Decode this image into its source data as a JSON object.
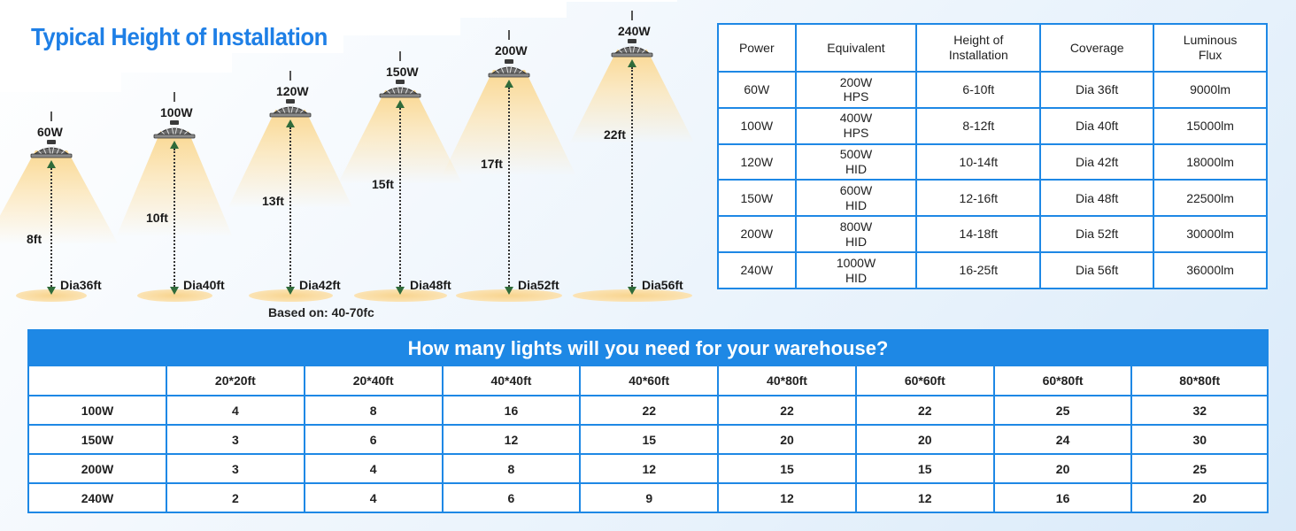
{
  "title": "Typical Height of Installation",
  "lamps": [
    {
      "watt": "60W",
      "height": "8ft",
      "dia": "Dia36ft"
    },
    {
      "watt": "100W",
      "height": "10ft",
      "dia": "Dia40ft"
    },
    {
      "watt": "120W",
      "height": "13ft",
      "dia": "Dia42ft"
    },
    {
      "watt": "150W",
      "height": "15ft",
      "dia": "Dia48ft"
    },
    {
      "watt": "200W",
      "height": "17ft",
      "dia": "Dia52ft"
    },
    {
      "watt": "240W",
      "height": "22ft",
      "dia": "Dia56ft"
    }
  ],
  "based_on": "Based on: 40-70fc",
  "spec_table": {
    "headers": [
      "Power",
      "Equivalent",
      "Height of\nInstallation",
      "Coverage",
      "Luminous\nFlux"
    ],
    "rows": [
      [
        "60W",
        "200W\nHPS",
        "6-10ft",
        "Dia 36ft",
        "9000lm"
      ],
      [
        "100W",
        "400W\nHPS",
        "8-12ft",
        "Dia 40ft",
        "15000lm"
      ],
      [
        "120W",
        "500W\nHID",
        "10-14ft",
        "Dia 42ft",
        "18000lm"
      ],
      [
        "150W",
        "600W\nHID",
        "12-16ft",
        "Dia 48ft",
        "22500lm"
      ],
      [
        "200W",
        "800W\nHID",
        "14-18ft",
        "Dia 52ft",
        "30000lm"
      ],
      [
        "240W",
        "1000W\nHID",
        "16-25ft",
        "Dia 56ft",
        "36000lm"
      ]
    ]
  },
  "need_table": {
    "title": "How many lights will you need for your warehouse?",
    "columns": [
      "",
      "20*20ft",
      "20*40ft",
      "40*40ft",
      "40*60ft",
      "40*80ft",
      "60*60ft",
      "60*80ft",
      "80*80ft"
    ],
    "rows": [
      [
        "100W",
        "4",
        "8",
        "16",
        "22",
        "22",
        "22",
        "25",
        "32"
      ],
      [
        "150W",
        "3",
        "6",
        "12",
        "15",
        "20",
        "20",
        "24",
        "30"
      ],
      [
        "200W",
        "3",
        "4",
        "8",
        "12",
        "15",
        "15",
        "20",
        "25"
      ],
      [
        "240W",
        "2",
        "4",
        "6",
        "9",
        "12",
        "12",
        "16",
        "20"
      ]
    ]
  },
  "colors": {
    "accent": "#1e88e5",
    "title": "#1e7fe6",
    "beam": "#fad68c"
  }
}
